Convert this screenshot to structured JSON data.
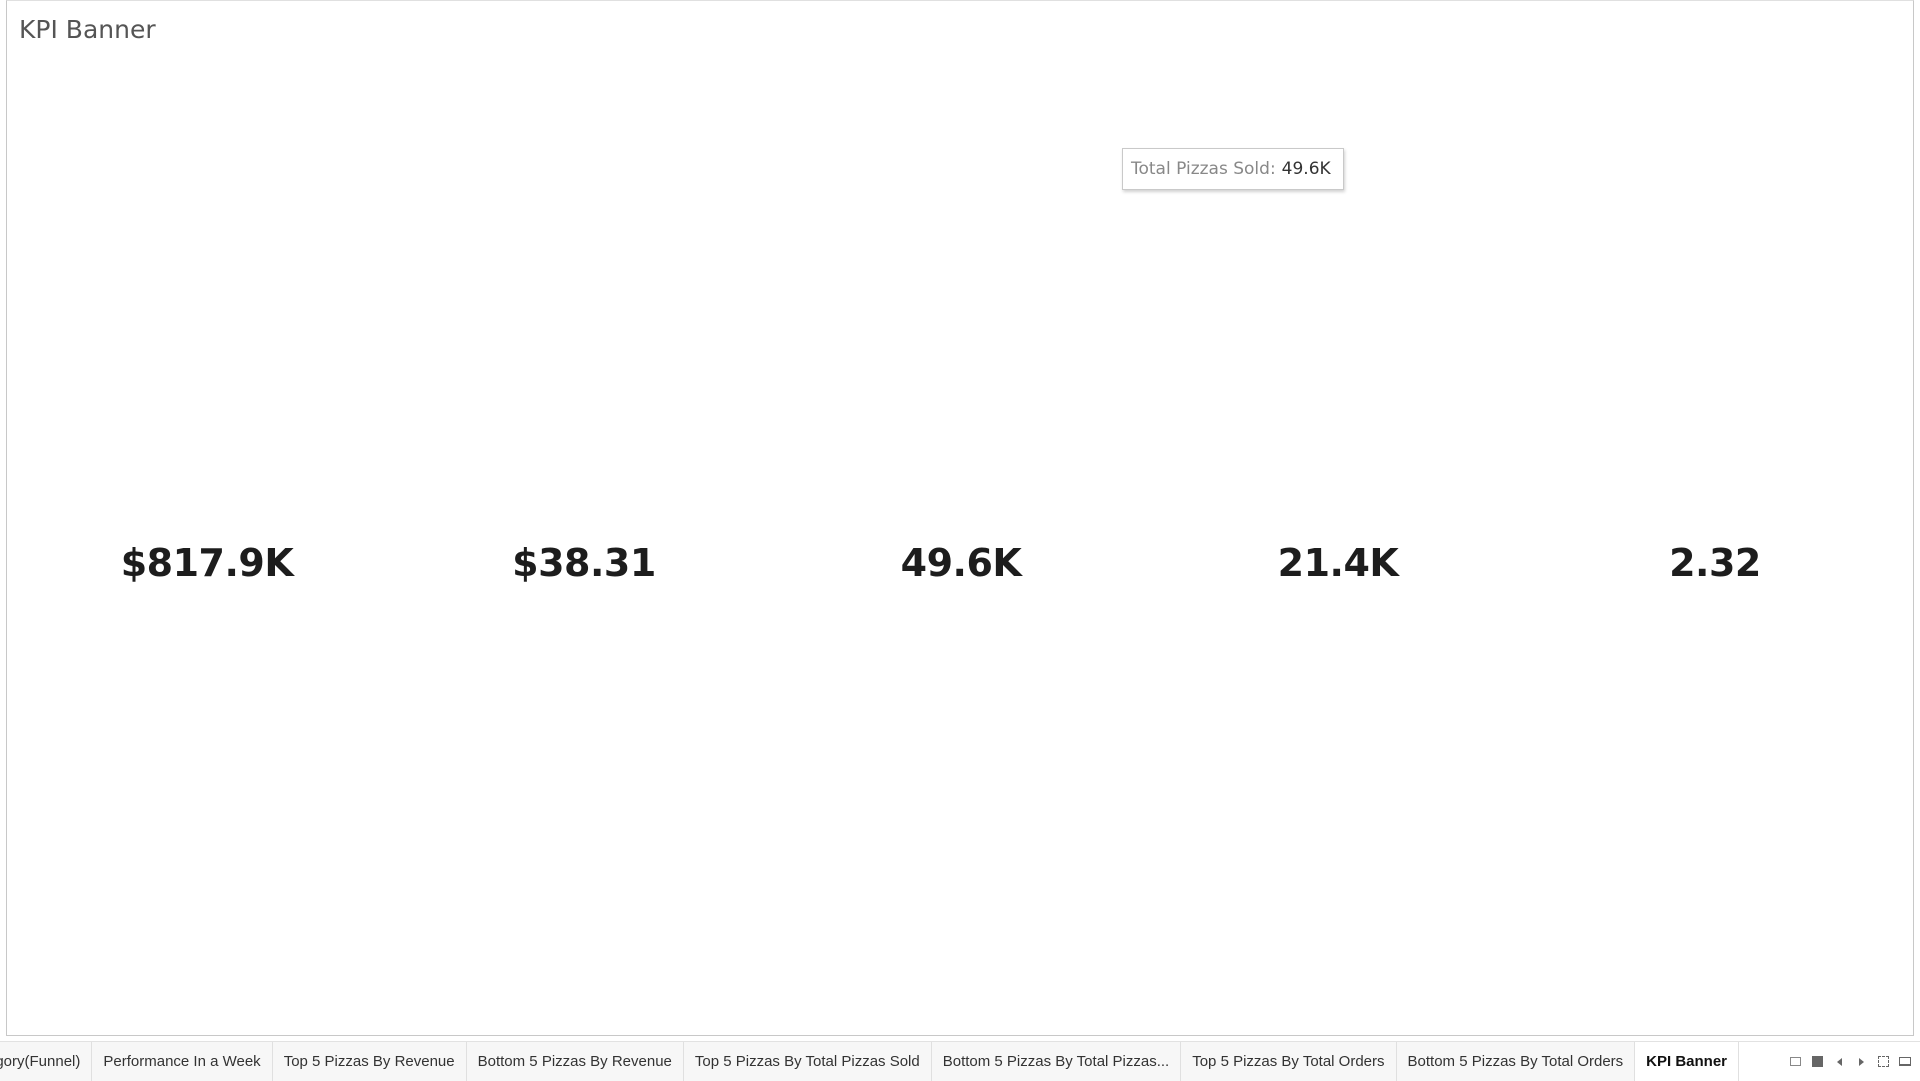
{
  "sheet": {
    "title": "KPI Banner"
  },
  "kpis": [
    {
      "value": "$817.9K"
    },
    {
      "value": "$38.31"
    },
    {
      "value": "49.6K"
    },
    {
      "value": "21.4K"
    },
    {
      "value": "2.32"
    }
  ],
  "tooltip": {
    "label": "Total Pizzas Sold:",
    "value": "49.6K"
  },
  "tabs": [
    {
      "label": "egory(Funnel)"
    },
    {
      "label": "Performance In a Week"
    },
    {
      "label": "Top 5 Pizzas By Revenue"
    },
    {
      "label": "Bottom 5 Pizzas By Revenue"
    },
    {
      "label": "Top 5 Pizzas By Total Pizzas Sold"
    },
    {
      "label": "Bottom 5 Pizzas By Total Pizzas..."
    },
    {
      "label": "Top 5 Pizzas By Total Orders"
    },
    {
      "label": "Bottom 5 Pizzas By Total Orders"
    },
    {
      "label": "KPI Banner",
      "active": true
    }
  ],
  "tab_tools": [
    {
      "icon": "show-filmstrip-icon"
    },
    {
      "icon": "show-sheet-icon"
    },
    {
      "icon": "scroll-left-icon"
    },
    {
      "icon": "scroll-right-icon"
    },
    {
      "icon": "fullscreen-icon"
    },
    {
      "icon": "presentation-mode-icon"
    }
  ]
}
